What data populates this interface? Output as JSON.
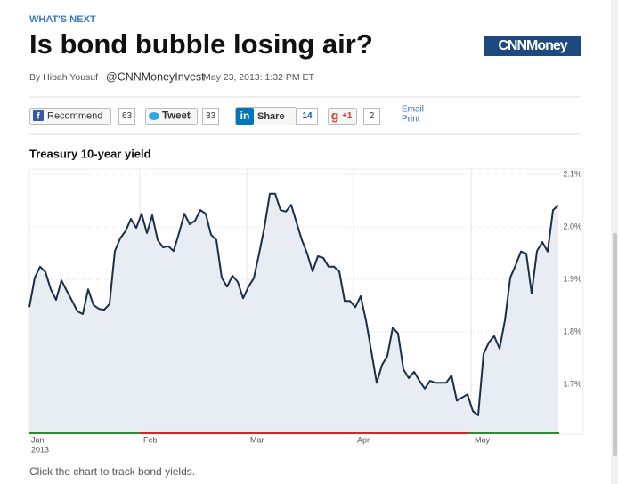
{
  "header": {
    "section": "WHAT'S NEXT",
    "title": "Is bond bubble losing air?",
    "logo": "CNNMoney",
    "byline": "By Hibah Yousuf",
    "handle": "@CNNMoneyInvest",
    "date": "May 23, 2013: 1:32 PM ET"
  },
  "share": {
    "recommend": "Recommend",
    "recommend_count": 63,
    "tweet": "Tweet",
    "tweet_count": 33,
    "linkedin": "Share",
    "linkedin_count": 14,
    "plusone": "+1",
    "plusone_count": 2,
    "email": "Email",
    "print": "Print"
  },
  "chart_data": {
    "type": "line",
    "title": "Treasury 10-year yield",
    "color": "#1b2f47",
    "fill": "#e8edf3",
    "categories": [
      "Jan",
      null,
      null,
      null,
      null,
      null,
      null,
      null,
      null,
      null,
      null,
      null,
      null,
      null,
      null,
      null,
      null,
      null,
      null,
      null,
      null,
      "Feb",
      null,
      null,
      null,
      null,
      null,
      null,
      null,
      null,
      null,
      null,
      null,
      null,
      null,
      null,
      null,
      null,
      null,
      null,
      null,
      "Mar",
      null,
      null,
      null,
      null,
      null,
      null,
      null,
      null,
      null,
      null,
      null,
      null,
      null,
      null,
      null,
      null,
      null,
      null,
      null,
      "Apr",
      null,
      null,
      null,
      null,
      null,
      null,
      null,
      null,
      null,
      null,
      null,
      null,
      null,
      null,
      null,
      null,
      null,
      null,
      null,
      null,
      null,
      "May",
      null,
      null,
      null,
      null,
      null,
      null,
      null,
      null,
      null,
      null,
      null,
      null,
      null,
      null,
      null,
      null
    ],
    "year_label": "2013",
    "values": [
      1.847,
      1.903,
      1.924,
      1.914,
      1.881,
      1.861,
      1.898,
      1.878,
      1.859,
      1.839,
      1.834,
      1.881,
      1.851,
      1.844,
      1.842,
      1.853,
      1.954,
      1.978,
      1.992,
      2.015,
      1.998,
      2.025,
      1.988,
      2.022,
      1.975,
      1.961,
      1.963,
      1.954,
      1.988,
      2.025,
      2.005,
      2.012,
      2.032,
      2.025,
      1.985,
      1.975,
      1.903,
      1.886,
      1.907,
      1.895,
      1.864,
      1.886,
      1.902,
      1.949,
      2.0,
      2.063,
      2.063,
      2.032,
      2.029,
      2.042,
      2.008,
      1.975,
      1.949,
      1.915,
      1.944,
      1.941,
      1.924,
      1.924,
      1.915,
      1.859,
      1.859,
      1.847,
      1.868,
      1.822,
      1.763,
      1.703,
      1.737,
      1.754,
      1.808,
      1.797,
      1.729,
      1.712,
      1.724,
      1.707,
      1.692,
      1.707,
      1.703,
      1.703,
      1.703,
      1.717,
      1.669,
      1.675,
      1.681,
      1.649,
      1.641,
      1.758,
      1.78,
      1.792,
      1.768,
      1.822,
      1.903,
      1.927,
      1.953,
      1.949,
      1.873,
      1.954,
      1.971,
      1.953,
      2.032,
      2.041
    ],
    "ylim": [
      1.607,
      2.11
    ],
    "yticks": [
      {
        "value": 1.7,
        "label": "1.7%"
      },
      {
        "value": 1.8,
        "label": "1.8%"
      },
      {
        "value": 1.9,
        "label": "1.9%"
      },
      {
        "value": 2.0,
        "label": "2.0%"
      },
      {
        "value": 2.1,
        "label": "2.1%"
      }
    ],
    "grid": true
  },
  "caption": "Click the chart to track bond yields."
}
